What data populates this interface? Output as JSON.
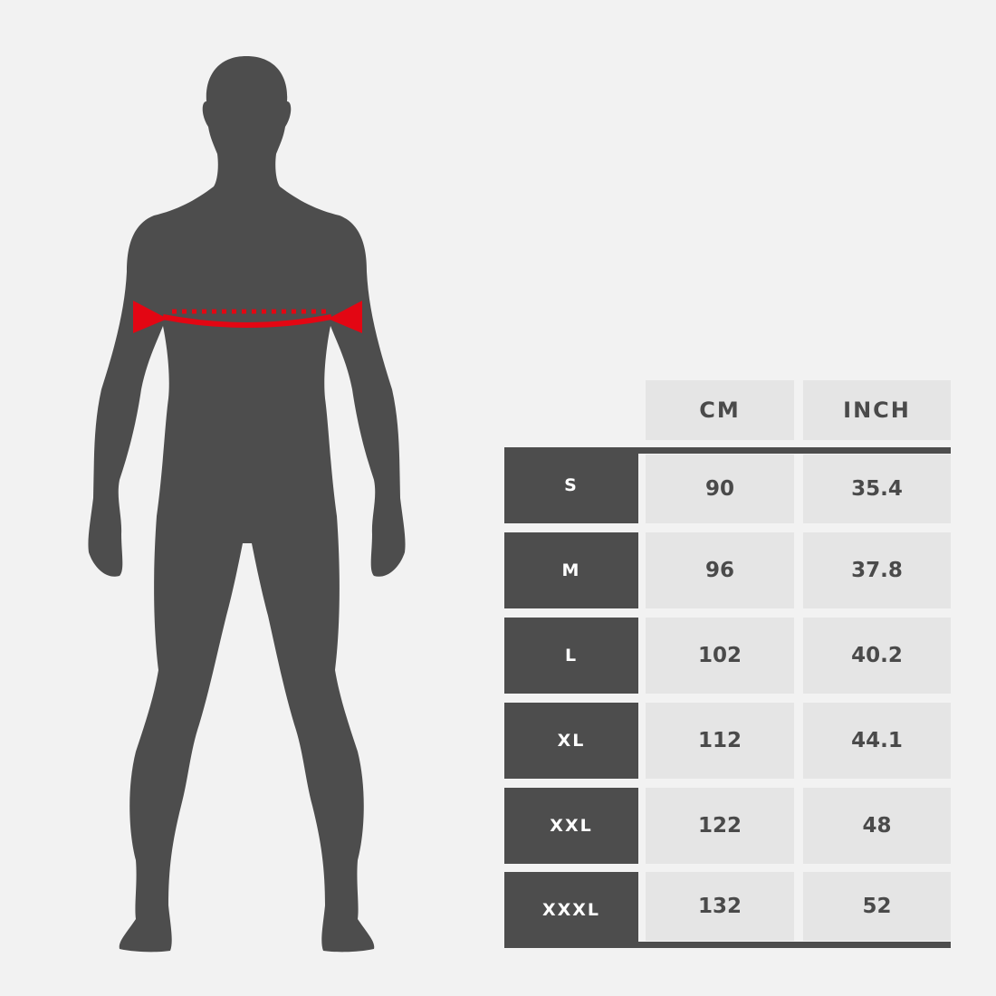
{
  "colors": {
    "background": "#f2f2f2",
    "silhouette": "#4d4d4d",
    "measure_marker": "#e30613",
    "header_cell": "#e5e5e5"
  },
  "figure": {
    "icon": "human-silhouette-with-chest-measurement-icon"
  },
  "table": {
    "headers": [
      "CM",
      "INCH"
    ],
    "rows": [
      {
        "size": "S",
        "cm": "90",
        "inch": "35.4"
      },
      {
        "size": "M",
        "cm": "96",
        "inch": "37.8"
      },
      {
        "size": "L",
        "cm": "102",
        "inch": "40.2"
      },
      {
        "size": "XL",
        "cm": "112",
        "inch": "44.1"
      },
      {
        "size": "XXL",
        "cm": "122",
        "inch": "48"
      },
      {
        "size": "XXXL",
        "cm": "132",
        "inch": "52"
      }
    ]
  }
}
